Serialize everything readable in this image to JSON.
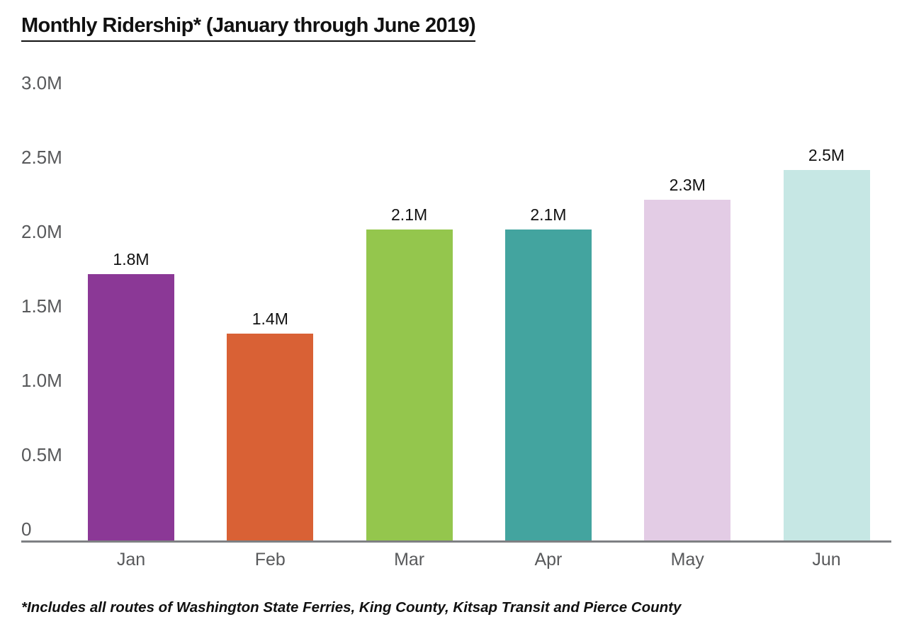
{
  "chart_data": {
    "type": "bar",
    "title": "Monthly Ridership* (January through June 2019)",
    "categories": [
      "Jan",
      "Feb",
      "Mar",
      "Apr",
      "May",
      "Jun"
    ],
    "values": [
      1.8,
      1.4,
      2.1,
      2.1,
      2.3,
      2.5
    ],
    "value_labels": [
      "1.8M",
      "1.4M",
      "2.1M",
      "2.1M",
      "2.3M",
      "2.5M"
    ],
    "bar_colors": [
      "#8B3896",
      "#D96135",
      "#94C64D",
      "#43A49F",
      "#E3CCE5",
      "#C6E7E4"
    ],
    "xlabel": "",
    "ylabel": "",
    "ylim": [
      0,
      3.0
    ],
    "ytick_values": [
      0,
      0.5,
      1.0,
      1.5,
      2.0,
      2.5,
      3.0
    ],
    "ytick_labels": [
      "0",
      "0.5M",
      "1.0M",
      "1.5M",
      "2.0M",
      "2.5M",
      "3.0M"
    ],
    "grid": false,
    "legend": "none",
    "footnote": "*Includes all routes of Washington State Ferries, King County, Kitsap Transit and Pierce County",
    "colors": {
      "axis_text": "#58595B",
      "axis_line": "#7E8083",
      "value_label_text": "#111111",
      "title_text": "#111111",
      "background": "#FFFFFF"
    }
  }
}
